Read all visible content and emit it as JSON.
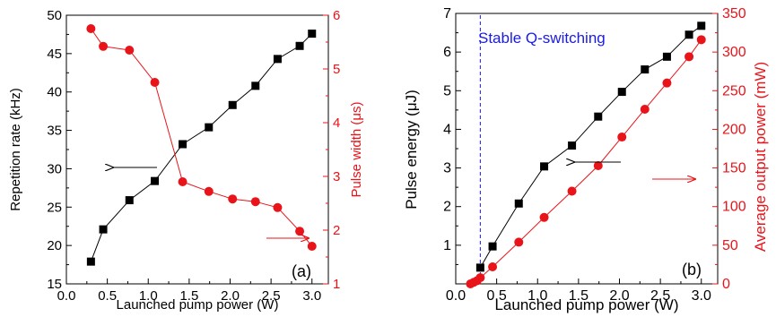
{
  "colors": {
    "black": "#000000",
    "red": "#e8141a",
    "blue": "#1a1ae6"
  },
  "chart_data": [
    {
      "type": "line",
      "panel_label": "(a)",
      "xlabel": "Launched pump power (W)",
      "ylabel_left": "Repetition rate (kHz)",
      "ylabel_right": "Pulse width (μs)",
      "xlim": [
        0.0,
        3.2
      ],
      "ylim_left": [
        15,
        50
      ],
      "ylim_right": [
        1,
        6
      ],
      "xticks": [
        "0.0",
        "0.5",
        "1.0",
        "1.5",
        "2.0",
        "2.5",
        "3.0"
      ],
      "yticks_left": [
        "15",
        "20",
        "25",
        "30",
        "35",
        "40",
        "45",
        "50"
      ],
      "yticks_right": [
        "1",
        "2",
        "3",
        "4",
        "5",
        "6"
      ],
      "series": [
        {
          "axis": "left",
          "marker": "square",
          "color": "#000000",
          "x": [
            0.3,
            0.45,
            0.77,
            1.08,
            1.42,
            1.74,
            2.03,
            2.31,
            2.58,
            2.85,
            3.0
          ],
          "y": [
            17.9,
            22.1,
            25.9,
            28.4,
            33.2,
            35.4,
            38.3,
            40.8,
            44.3,
            46.0,
            47.6
          ]
        },
        {
          "axis": "right",
          "marker": "circle",
          "color": "#e8141a",
          "x": [
            0.3,
            0.45,
            0.77,
            1.08,
            1.42,
            1.74,
            2.03,
            2.31,
            2.58,
            2.85,
            3.0
          ],
          "y": [
            5.75,
            5.42,
            5.35,
            4.75,
            2.9,
            2.72,
            2.58,
            2.53,
            2.42,
            1.98,
            1.7
          ]
        }
      ],
      "arrows": [
        {
          "direction": "left",
          "series": "Repetition rate"
        },
        {
          "direction": "right",
          "series": "Pulse width"
        }
      ]
    },
    {
      "type": "line",
      "panel_label": "(b)",
      "annotation": "Stable Q-switching",
      "xlabel": "Launched pump power (W)",
      "ylabel_left": "Pulse energy  (μJ)",
      "ylabel_right": "Average output power (mW)",
      "xlim": [
        0.0,
        3.2
      ],
      "ylim_left": [
        0,
        7
      ],
      "ylim_right": [
        0,
        350
      ],
      "threshold_x": 0.3,
      "xticks": [
        "0.0",
        "0.5",
        "1.0",
        "1.5",
        "2.0",
        "2.5",
        "3.0"
      ],
      "yticks_left": [
        "1",
        "2",
        "3",
        "4",
        "5",
        "6",
        "7"
      ],
      "yticks_right": [
        "0",
        "50",
        "100",
        "150",
        "200",
        "250",
        "300",
        "350"
      ],
      "series": [
        {
          "axis": "left",
          "marker": "square",
          "color": "#000000",
          "x": [
            0.3,
            0.45,
            0.77,
            1.08,
            1.42,
            1.74,
            2.03,
            2.31,
            2.58,
            2.85,
            3.0
          ],
          "y": [
            0.42,
            0.97,
            2.08,
            3.04,
            3.58,
            4.33,
            4.97,
            5.55,
            5.88,
            6.45,
            6.68
          ]
        },
        {
          "axis": "right",
          "marker": "circle",
          "color": "#e8141a",
          "x": [
            0.18,
            0.22,
            0.26,
            0.3,
            0.45,
            0.77,
            1.08,
            1.42,
            1.74,
            2.03,
            2.31,
            2.58,
            2.85,
            3.0
          ],
          "y": [
            0,
            2,
            4,
            8,
            22,
            54,
            86,
            120,
            153,
            190,
            226,
            260,
            294,
            316
          ]
        }
      ],
      "arrows": [
        {
          "direction": "left",
          "series": "Pulse energy"
        },
        {
          "direction": "right",
          "series": "Average output power"
        }
      ]
    }
  ]
}
